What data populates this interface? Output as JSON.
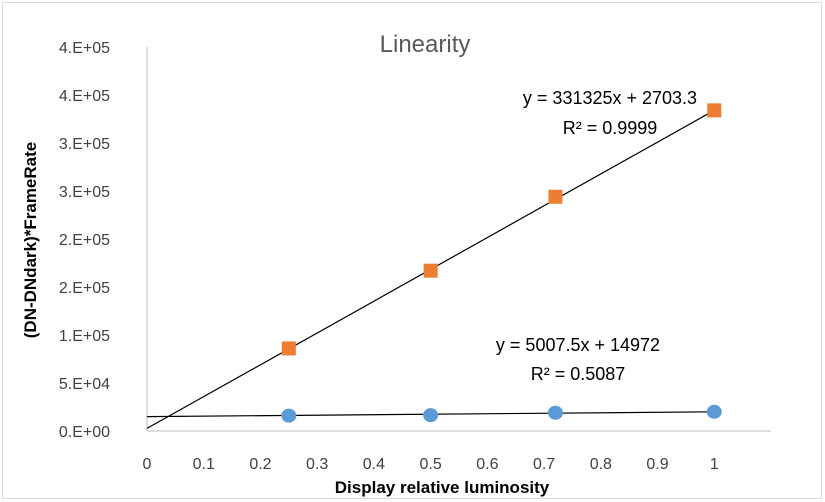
{
  "chart_data": {
    "type": "scatter",
    "title": "Linearity",
    "xlabel": "Display relative luminosity",
    "ylabel": "(DN-DNdark)*FrameRate",
    "xlim": [
      0,
      1.1
    ],
    "ylim": [
      0,
      400000
    ],
    "x_ticks": [
      "0",
      "0.1",
      "0.2",
      "0.3",
      "0.4",
      "0.5",
      "0.6",
      "0.7",
      "0.8",
      "0.9",
      "1"
    ],
    "y_ticks": [
      "0.E+00",
      "5.E+04",
      "1.E+05",
      "2.E+05",
      "2.E+05",
      "3.E+05",
      "3.E+05",
      "4.E+05",
      "4.E+05"
    ],
    "grid": false,
    "legend": "none",
    "series": [
      {
        "marker": "square",
        "color": "#ED7D31",
        "x": [
          0.25,
          0.5,
          0.72,
          1.0
        ],
        "y": [
          86000,
          167000,
          244000,
          334000
        ],
        "trendline": {
          "slope": 331325,
          "intercept": 2703.3
        },
        "equation": "y = 331325x + 2703.3",
        "r_squared": "R² = 0.9999"
      },
      {
        "marker": "circle",
        "color": "#5B9BD5",
        "x": [
          0.25,
          0.5,
          0.72,
          1.0
        ],
        "y": [
          16000,
          16500,
          19000,
          20000
        ],
        "trendline": {
          "slope": 5007.5,
          "intercept": 14972
        },
        "equation": "y = 5007.5x + 14972",
        "r_squared": "R² = 0.5087"
      }
    ]
  }
}
